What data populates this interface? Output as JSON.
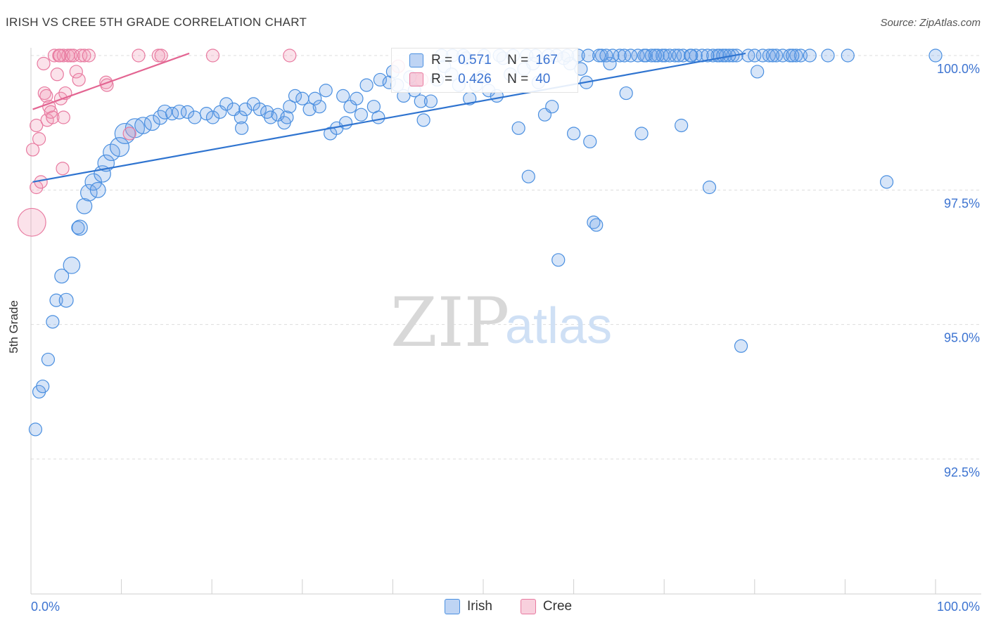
{
  "title": "IRISH VS CREE 5TH GRADE CORRELATION CHART",
  "source": "Source: ZipAtlas.com",
  "watermark": {
    "zip": "ZIP",
    "atlas": "atlas"
  },
  "colors": {
    "irish": "#4a8fe0",
    "irish_fill": "rgba(110,160,230,0.28)",
    "irish_line": "#2f74d0",
    "cree": "#e87aa0",
    "cree_fill": "rgba(240,150,180,0.28)",
    "cree_line": "#e36592",
    "tick_text": "#3d74d1",
    "grid": "#dddddd"
  },
  "stats": [
    {
      "r_label": "R =",
      "r": "0.571",
      "n_label": "N =",
      "n": "167",
      "series": "irish"
    },
    {
      "r_label": "R =",
      "r": "0.426",
      "n_label": "N =",
      "n": "40",
      "series": "cree"
    }
  ],
  "legend": [
    {
      "label": "Irish",
      "series": "irish"
    },
    {
      "label": "Cree",
      "series": "cree"
    }
  ],
  "chart_data": {
    "type": "scatter",
    "title": "IRISH VS CREE 5TH GRADE CORRELATION CHART",
    "xlabel": "",
    "ylabel": "5th Grade",
    "xlim": [
      0,
      100
    ],
    "ylim": [
      90.3,
      100.3
    ],
    "x_tick_labels": [
      "0.0%",
      "100.0%"
    ],
    "y_ticks": [
      92.5,
      95.0,
      97.5,
      100.0
    ],
    "y_tick_labels": [
      "92.5%",
      "95.0%",
      "97.5%",
      "100.0%"
    ],
    "grid": true,
    "series": [
      {
        "name": "Irish",
        "trendline": {
          "x": [
            0.2,
            79
          ],
          "y": [
            97.65,
            100.04
          ]
        },
        "points": [
          [
            0.5,
            93.05,
            1
          ],
          [
            0.9,
            93.75,
            1
          ],
          [
            1.3,
            93.85,
            1
          ],
          [
            1.9,
            94.35,
            1
          ],
          [
            2.4,
            95.05,
            1
          ],
          [
            2.8,
            95.45,
            1
          ],
          [
            3.4,
            95.9,
            1.1
          ],
          [
            3.9,
            95.45,
            1.1
          ],
          [
            4.5,
            96.1,
            1.3
          ],
          [
            5.2,
            96.8,
            1
          ],
          [
            5.4,
            96.8,
            1.2
          ],
          [
            5.9,
            97.2,
            1.2
          ],
          [
            6.4,
            97.45,
            1.3
          ],
          [
            6.9,
            97.65,
            1.3
          ],
          [
            7.4,
            97.5,
            1.2
          ],
          [
            7.9,
            97.8,
            1.3
          ],
          [
            8.3,
            98.0,
            1.3
          ],
          [
            8.9,
            98.2,
            1.3
          ],
          [
            9.8,
            98.3,
            1.5
          ],
          [
            10.4,
            98.55,
            1.6
          ],
          [
            11.5,
            98.65,
            1.5
          ],
          [
            12.4,
            98.7,
            1.3
          ],
          [
            13.4,
            98.75,
            1.2
          ],
          [
            14.3,
            98.85,
            1.1
          ],
          [
            14.8,
            98.95,
            1.1
          ],
          [
            15.6,
            98.92,
            1
          ],
          [
            16.4,
            98.95,
            1.1
          ],
          [
            17.3,
            98.95,
            1
          ],
          [
            18.1,
            98.85,
            1
          ],
          [
            19.4,
            98.92,
            1
          ],
          [
            20.1,
            98.85,
            1
          ],
          [
            20.9,
            98.95,
            1
          ],
          [
            21.6,
            99.1,
            1
          ],
          [
            22.4,
            99.0,
            1
          ],
          [
            23.2,
            98.85,
            1
          ],
          [
            23.7,
            99.0,
            1
          ],
          [
            23.3,
            98.65,
            1
          ],
          [
            24.6,
            99.1,
            1
          ],
          [
            25.3,
            99.0,
            1
          ],
          [
            26.1,
            98.95,
            1
          ],
          [
            26.5,
            98.85,
            1
          ],
          [
            27.3,
            98.9,
            1
          ],
          [
            28.0,
            98.75,
            1
          ],
          [
            28.3,
            98.85,
            1
          ],
          [
            28.6,
            99.05,
            1
          ],
          [
            29.2,
            99.25,
            1
          ],
          [
            30.0,
            99.2,
            1
          ],
          [
            30.8,
            99.0,
            1
          ],
          [
            31.4,
            99.2,
            1
          ],
          [
            31.9,
            99.05,
            1
          ],
          [
            32.6,
            99.35,
            1
          ],
          [
            33.1,
            98.55,
            1
          ],
          [
            33.8,
            98.65,
            1
          ],
          [
            34.5,
            99.25,
            1
          ],
          [
            34.8,
            98.75,
            1
          ],
          [
            35.3,
            99.05,
            1
          ],
          [
            36.0,
            99.2,
            1
          ],
          [
            36.5,
            98.9,
            1
          ],
          [
            37.1,
            99.45,
            1
          ],
          [
            37.9,
            99.05,
            1
          ],
          [
            38.4,
            98.85,
            1
          ],
          [
            38.6,
            99.55,
            1
          ],
          [
            39.6,
            99.5,
            1
          ],
          [
            40.0,
            99.7,
            1
          ],
          [
            40.5,
            99.45,
            1
          ],
          [
            41.2,
            99.25,
            1
          ],
          [
            41.9,
            99.6,
            1
          ],
          [
            42.4,
            99.35,
            1
          ],
          [
            43.1,
            99.15,
            1
          ],
          [
            43.4,
            98.8,
            1
          ],
          [
            44.2,
            99.15,
            1
          ],
          [
            44.9,
            99.55,
            1
          ],
          [
            45.7,
            99.8,
            1
          ],
          [
            46.5,
            99.65,
            1
          ],
          [
            47.3,
            99.45,
            1
          ],
          [
            48.1,
            99.95,
            1
          ],
          [
            48.5,
            99.2,
            1
          ],
          [
            49.2,
            99.45,
            1
          ],
          [
            49.9,
            99.6,
            1
          ],
          [
            50.6,
            99.35,
            1
          ],
          [
            51.5,
            99.25,
            1
          ],
          [
            52.2,
            99.95,
            1
          ],
          [
            53.0,
            99.65,
            1
          ],
          [
            53.9,
            98.65,
            1
          ],
          [
            54.5,
            99.75,
            1
          ],
          [
            55.0,
            97.75,
            1
          ],
          [
            55.5,
            99.85,
            1
          ],
          [
            56.1,
            99.5,
            1
          ],
          [
            56.8,
            98.9,
            1
          ],
          [
            57.6,
            99.05,
            1
          ],
          [
            58.3,
            96.2,
            1
          ],
          [
            58.9,
            99.95,
            1
          ],
          [
            59.6,
            99.85,
            1
          ],
          [
            60.0,
            98.55,
            1
          ],
          [
            60.8,
            99.75,
            1
          ],
          [
            61.4,
            99.5,
            1
          ],
          [
            61.8,
            98.4,
            1
          ],
          [
            62.2,
            96.9,
            1
          ],
          [
            62.5,
            96.85,
            1
          ],
          [
            63.1,
            100.0,
            1
          ],
          [
            64.0,
            99.85,
            1
          ],
          [
            65.1,
            100.0,
            1
          ],
          [
            65.8,
            99.3,
            1
          ],
          [
            67.1,
            100.0,
            1
          ],
          [
            67.5,
            98.55,
            1
          ],
          [
            68.0,
            100.0,
            1
          ],
          [
            68.6,
            100.0,
            1
          ],
          [
            69.3,
            100.0,
            1
          ],
          [
            70.1,
            100.0,
            1
          ],
          [
            71.2,
            100.0,
            1
          ],
          [
            71.9,
            98.7,
            1
          ],
          [
            72.1,
            100.0,
            1
          ],
          [
            72.9,
            100.0,
            1
          ],
          [
            73.5,
            100.0,
            1
          ],
          [
            74.2,
            100.0,
            1
          ],
          [
            75.0,
            97.55,
            1
          ],
          [
            75.4,
            100.0,
            1
          ],
          [
            76.1,
            100.0,
            1
          ],
          [
            76.8,
            100.0,
            1
          ],
          [
            77.6,
            100.0,
            1
          ],
          [
            78.0,
            100.0,
            1
          ],
          [
            78.5,
            94.6,
            1
          ],
          [
            79.3,
            100.0,
            1
          ],
          [
            80.3,
            99.7,
            1
          ],
          [
            80.9,
            100.0,
            1
          ],
          [
            81.6,
            100.0,
            1
          ],
          [
            82.4,
            100.0,
            1
          ],
          [
            83.1,
            100.0,
            1
          ],
          [
            83.9,
            100.0,
            1
          ],
          [
            84.6,
            100.0,
            1
          ],
          [
            85.1,
            100.0,
            1
          ],
          [
            86.1,
            100.0,
            1
          ],
          [
            88.1,
            100.0,
            1
          ],
          [
            90.3,
            100.0,
            1
          ],
          [
            94.6,
            97.65,
            1
          ],
          [
            100,
            100.0,
            1
          ],
          [
            60.5,
            100.0,
            1
          ],
          [
            54.8,
            100.0,
            1
          ],
          [
            50.1,
            100.0,
            1
          ],
          [
            46.6,
            100.0,
            1
          ],
          [
            47.8,
            100.0,
            1
          ],
          [
            51.8,
            100.0,
            1
          ],
          [
            57.2,
            100.0,
            1
          ],
          [
            62.8,
            100.0,
            1
          ],
          [
            64.3,
            100.0,
            1
          ],
          [
            66.3,
            100.0,
            1
          ],
          [
            69.8,
            100.0,
            1
          ],
          [
            73.0,
            100.0,
            1
          ],
          [
            75.9,
            100.0,
            1
          ],
          [
            77.2,
            100.0,
            1
          ],
          [
            80.0,
            100.0,
            1
          ],
          [
            82.0,
            100.0,
            1
          ],
          [
            84.2,
            100.0,
            1
          ],
          [
            69.0,
            100.0,
            1
          ],
          [
            70.6,
            100.0,
            1
          ],
          [
            74.8,
            100.0,
            1
          ],
          [
            59.3,
            100.0,
            1
          ],
          [
            58.1,
            100.0,
            1
          ],
          [
            45.4,
            100.0,
            1
          ],
          [
            53.3,
            100.0,
            1
          ],
          [
            55.8,
            100.0,
            1
          ],
          [
            61.6,
            100.0,
            1
          ],
          [
            63.6,
            100.0,
            1
          ],
          [
            65.6,
            100.0,
            1
          ],
          [
            67.8,
            100.0,
            1
          ],
          [
            71.6,
            100.0,
            1
          ],
          [
            76.5,
            100.0,
            1
          ]
        ]
      },
      {
        "name": "Cree",
        "trendline": {
          "x": [
            0.2,
            17.5
          ],
          "y": [
            99.0,
            100.04
          ]
        },
        "points": [
          [
            0.1,
            96.9,
            2.2
          ],
          [
            0.2,
            98.25,
            1
          ],
          [
            0.6,
            98.7,
            1
          ],
          [
            0.6,
            97.55,
            1
          ],
          [
            0.9,
            98.45,
            1
          ],
          [
            1.1,
            97.65,
            1
          ],
          [
            1.4,
            99.85,
            1
          ],
          [
            1.5,
            99.3,
            1
          ],
          [
            1.7,
            99.25,
            1
          ],
          [
            1.8,
            98.8,
            1
          ],
          [
            2.0,
            99.05,
            1
          ],
          [
            2.2,
            98.95,
            1
          ],
          [
            2.4,
            98.85,
            1
          ],
          [
            2.6,
            100.0,
            1
          ],
          [
            2.9,
            99.65,
            1
          ],
          [
            3.1,
            100.0,
            1
          ],
          [
            3.3,
            99.2,
            1
          ],
          [
            3.6,
            100.0,
            1
          ],
          [
            3.5,
            97.9,
            1
          ],
          [
            3.6,
            98.85,
            1
          ],
          [
            3.8,
            99.3,
            1
          ],
          [
            4.1,
            100.0,
            1
          ],
          [
            4.4,
            100.0,
            1
          ],
          [
            4.7,
            100.0,
            1
          ],
          [
            5.0,
            99.7,
            1
          ],
          [
            5.3,
            99.55,
            1
          ],
          [
            5.5,
            100.0,
            1
          ],
          [
            5.9,
            100.0,
            1
          ],
          [
            6.4,
            100.0,
            1
          ],
          [
            8.3,
            99.5,
            1
          ],
          [
            8.4,
            99.45,
            1
          ],
          [
            10.9,
            98.55,
            1
          ],
          [
            11.9,
            100.0,
            1
          ],
          [
            14.1,
            100.0,
            1
          ],
          [
            14.4,
            100.0,
            1
          ],
          [
            20.1,
            100.0,
            1
          ],
          [
            28.6,
            100.0,
            1
          ],
          [
            43.2,
            99.55,
            1
          ],
          [
            40.6,
            99.8,
            1
          ],
          [
            3.2,
            100.0,
            1
          ]
        ]
      }
    ]
  }
}
